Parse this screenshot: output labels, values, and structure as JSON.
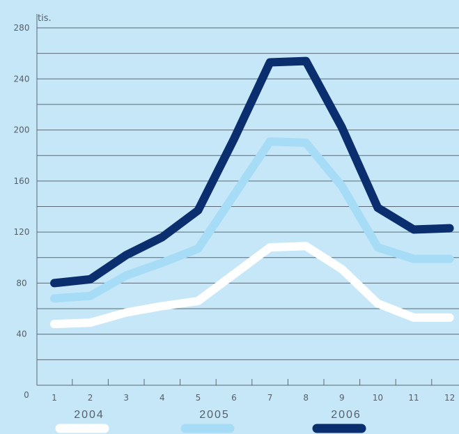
{
  "chart_data": {
    "type": "line",
    "unit_label": "tis.",
    "x": [
      "1",
      "2",
      "3",
      "4",
      "5",
      "6",
      "7",
      "8",
      "9",
      "10",
      "11",
      "12"
    ],
    "x_zero_label": "0",
    "ylim": [
      0,
      280
    ],
    "yticks": [
      40,
      80,
      120,
      160,
      200,
      240,
      280
    ],
    "grid": true,
    "legend_position": "bottom",
    "series": [
      {
        "name": "2004",
        "color": "#ffffff",
        "values": [
          48,
          49,
          57,
          62,
          66,
          87,
          108,
          109,
          91,
          64,
          53,
          53
        ]
      },
      {
        "name": "2005",
        "color": "#a6dcf6",
        "values": [
          68,
          70,
          86,
          96,
          107,
          149,
          191,
          190,
          156,
          108,
          99,
          99
        ]
      },
      {
        "name": "2006",
        "color": "#0b2f6e",
        "values": [
          80,
          83,
          102,
          116,
          137,
          193,
          253,
          254,
          202,
          139,
          122,
          123
        ]
      }
    ]
  }
}
